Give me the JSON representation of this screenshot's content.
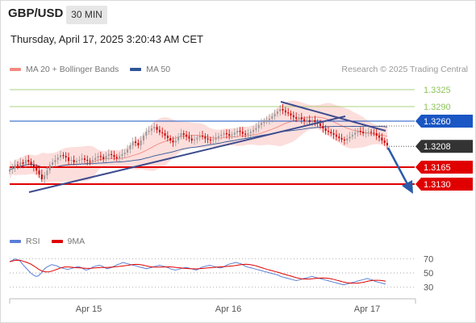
{
  "header": {
    "symbol": "GBP/USD",
    "timeframe": "30 MIN",
    "datetime": "Thursday, April 17, 2025 3:20:43 AM CET"
  },
  "legend_main": [
    {
      "label": "MA 20 + Bollinger Bands",
      "color": "#f28b82"
    },
    {
      "label": "MA 50",
      "color": "#2f5597"
    }
  ],
  "legend_rsi": [
    {
      "label": "RSI",
      "color": "#5b7fd6"
    },
    {
      "label": "9MA",
      "color": "#e00000"
    }
  ],
  "credit": "Research © 2025 Trading Central",
  "colors": {
    "bull": "#999999",
    "bear": "#cc0000",
    "resistance_green": "#8fc45a",
    "pivot_blue": "#1a56c4",
    "support_red": "#e00000",
    "current_dark": "#333333",
    "arrow": "#2a5ca8",
    "band_fill": "#fbd3d0"
  },
  "chart_data": [
    {
      "type": "candlestick",
      "x_labels": [
        "Apr 15",
        "Apr 16",
        "Apr 17"
      ],
      "ylim": [
        1.304,
        1.335
      ],
      "current_price": "1.3208",
      "levels": [
        {
          "value": 1.3325,
          "label": "1.3325",
          "kind": "resistance"
        },
        {
          "value": 1.329,
          "label": "1.3290",
          "kind": "resistance"
        },
        {
          "value": 1.326,
          "label": "1.3260",
          "kind": "pivot"
        },
        {
          "value": 1.3208,
          "label": "1.3208",
          "kind": "current"
        },
        {
          "value": 1.3165,
          "label": "1.3165",
          "kind": "support"
        },
        {
          "value": 1.313,
          "label": "1.3130",
          "kind": "support"
        }
      ],
      "close": [
        1.316,
        1.3163,
        1.317,
        1.3168,
        1.3175,
        1.3172,
        1.318,
        1.3176,
        1.317,
        1.3165,
        1.3158,
        1.315,
        1.314,
        1.3148,
        1.3158,
        1.317,
        1.3175,
        1.318,
        1.3185,
        1.319,
        1.3188,
        1.3185,
        1.3178,
        1.318,
        1.3175,
        1.3178,
        1.318,
        1.3183,
        1.318,
        1.3178,
        1.3177,
        1.318,
        1.3184,
        1.3188,
        1.3186,
        1.3182,
        1.3188,
        1.3192,
        1.319,
        1.3186,
        1.3183,
        1.3188,
        1.3192,
        1.3195,
        1.3202,
        1.321,
        1.3218,
        1.3215,
        1.321,
        1.322,
        1.323,
        1.3238,
        1.324,
        1.3245,
        1.3248,
        1.3242,
        1.3237,
        1.3235,
        1.323,
        1.3225,
        1.322,
        1.3216,
        1.322,
        1.3228,
        1.3235,
        1.3232,
        1.3228,
        1.3224,
        1.322,
        1.3222,
        1.3226,
        1.323,
        1.3228,
        1.3224,
        1.3222,
        1.322,
        1.3222,
        1.3226,
        1.3229,
        1.3232,
        1.3235,
        1.3233,
        1.323,
        1.3232,
        1.3236,
        1.324,
        1.3238,
        1.3234,
        1.3232,
        1.3235,
        1.3238,
        1.3242,
        1.3246,
        1.3252,
        1.3256,
        1.326,
        1.3262,
        1.3265,
        1.327,
        1.3275,
        1.328,
        1.3285,
        1.3282,
        1.3278,
        1.3276,
        1.3272,
        1.3268,
        1.3265,
        1.3268,
        1.3264,
        1.326,
        1.3262,
        1.3258,
        1.3262,
        1.3258,
        1.3255,
        1.325,
        1.3245,
        1.324,
        1.3238,
        1.3235,
        1.3232,
        1.3228,
        1.3225,
        1.3222,
        1.322,
        1.3224,
        1.3228,
        1.3232,
        1.3236,
        1.324,
        1.3238,
        1.3235,
        1.3236,
        1.3238,
        1.3236,
        1.3235,
        1.323,
        1.3226,
        1.322,
        1.3215,
        1.321
      ],
      "rsi": {
        "ylim": [
          20,
          80
        ],
        "ticks": [
          "70",
          "50",
          "30"
        ],
        "rsi": [
          66,
          68,
          70,
          69,
          67,
          62,
          58,
          54,
          50,
          47,
          45,
          46,
          50,
          55,
          58,
          60,
          62,
          61,
          60,
          58,
          57,
          56,
          55,
          56,
          57,
          58,
          59,
          58,
          56,
          54,
          55,
          57,
          59,
          60,
          61,
          60,
          58,
          56,
          57,
          58,
          60,
          62,
          63,
          65,
          64,
          63,
          62,
          61,
          60,
          59,
          58,
          57,
          56,
          57,
          58,
          59,
          60,
          61,
          60,
          59,
          58,
          56,
          55,
          54,
          55,
          56,
          57,
          58,
          57,
          56,
          55,
          54,
          56,
          58,
          59,
          60,
          61,
          60,
          59,
          58,
          57,
          58,
          60,
          62,
          63,
          64,
          65,
          64,
          63,
          61,
          59,
          58,
          57,
          56,
          55,
          54,
          53,
          52,
          51,
          50,
          49,
          48,
          47,
          45,
          44,
          43,
          42,
          41,
          40,
          39,
          40,
          41,
          42,
          43,
          44,
          45,
          44,
          43,
          42,
          41,
          40,
          39,
          38,
          37,
          36,
          35,
          34,
          33,
          34,
          35,
          36,
          37,
          38,
          39,
          40,
          41,
          42,
          41,
          40,
          38,
          37,
          36,
          35,
          34
        ]
      }
    }
  ]
}
